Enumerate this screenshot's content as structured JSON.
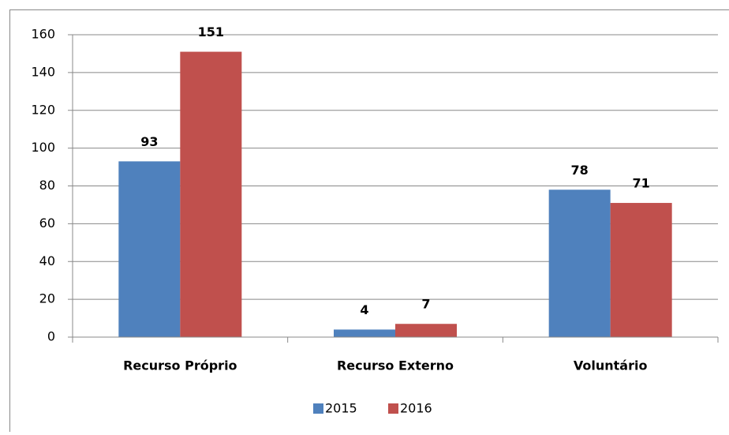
{
  "chart_data": {
    "type": "bar",
    "categories": [
      "Recurso Próprio",
      "Recurso Externo",
      "Voluntário"
    ],
    "series": [
      {
        "name": "2015",
        "color": "#4f81bd",
        "values": [
          93,
          4,
          78
        ]
      },
      {
        "name": "2016",
        "color": "#c0504d",
        "values": [
          151,
          7,
          71
        ]
      }
    ],
    "ylim": [
      0,
      160
    ],
    "yticks": [
      0,
      20,
      40,
      60,
      80,
      100,
      120,
      140,
      160
    ],
    "grid": true,
    "legend": "bottom"
  }
}
